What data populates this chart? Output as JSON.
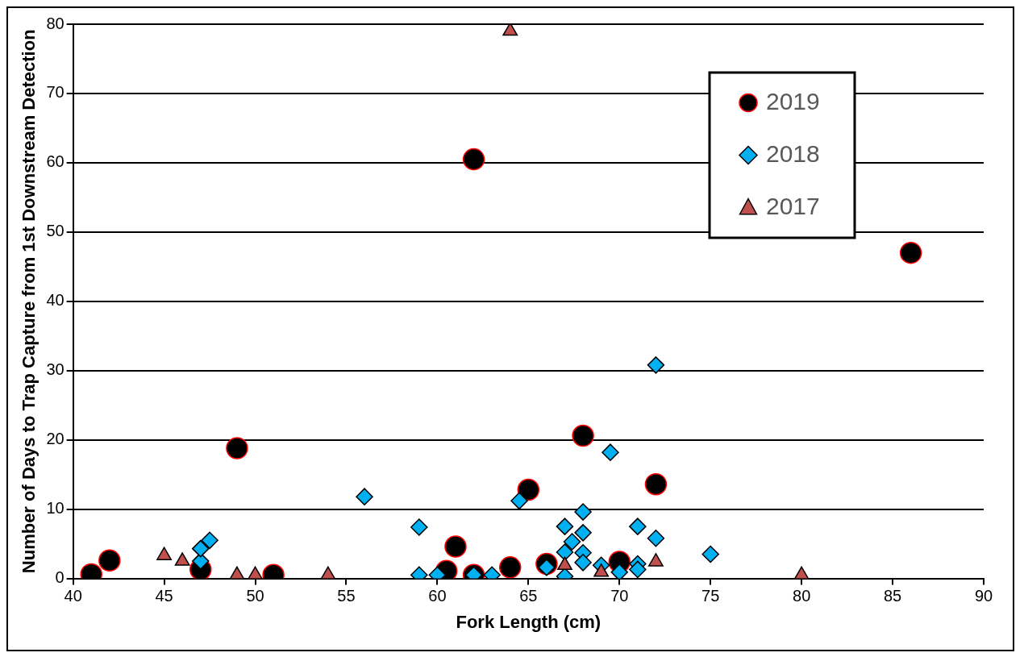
{
  "chart_data": {
    "type": "scatter",
    "xlabel": "Fork Length (cm)",
    "ylabel": "Number of Days to Trap Capture from 1st Downstream Detection",
    "xlim": [
      40,
      90
    ],
    "xticks": [
      40,
      45,
      50,
      55,
      60,
      65,
      70,
      75,
      80,
      85,
      90
    ],
    "ylim": [
      0,
      80
    ],
    "yticks": [
      0,
      10,
      20,
      30,
      40,
      50,
      60,
      70,
      80
    ],
    "grid": "y",
    "legend": "top right",
    "series": [
      {
        "name": "2019",
        "color": "#000000",
        "marker": "circle",
        "x": [
          41,
          42,
          47,
          49,
          51,
          60.5,
          61,
          62,
          62,
          64,
          65,
          66,
          68,
          70,
          72,
          86
        ],
        "values": [
          0.6,
          2.6,
          1.3,
          18.8,
          0.5,
          1.1,
          4.6,
          0.5,
          60.5,
          1.6,
          12.8,
          2.1,
          20.6,
          2.4,
          13.6,
          47
        ]
      },
      {
        "name": "2018",
        "color": "#00b0f0",
        "marker": "diamond",
        "x": [
          47,
          47,
          47.5,
          56,
          59,
          59,
          60,
          62,
          63,
          64.5,
          66,
          67,
          67,
          67,
          67.4,
          68,
          68,
          68,
          68,
          69,
          69.5,
          70,
          71,
          71,
          71,
          72,
          72,
          75
        ],
        "values": [
          2.5,
          4.3,
          5.5,
          11.8,
          7.4,
          0.5,
          0.5,
          0.5,
          0.5,
          11.2,
          1.6,
          7.5,
          0.3,
          3.8,
          5.3,
          9.6,
          6.6,
          3.7,
          2.3,
          1.9,
          18.2,
          0.9,
          7.5,
          2.1,
          1.3,
          30.8,
          5.8,
          3.5
        ]
      },
      {
        "name": "2017",
        "color": "#c0504d",
        "marker": "triangle",
        "x": [
          45,
          46,
          49,
          50,
          54,
          64,
          67,
          69,
          72,
          80
        ],
        "values": [
          3.3,
          2.5,
          0.5,
          0.5,
          0.5,
          79,
          1.9,
          0.9,
          2.4,
          0.5
        ]
      }
    ]
  }
}
